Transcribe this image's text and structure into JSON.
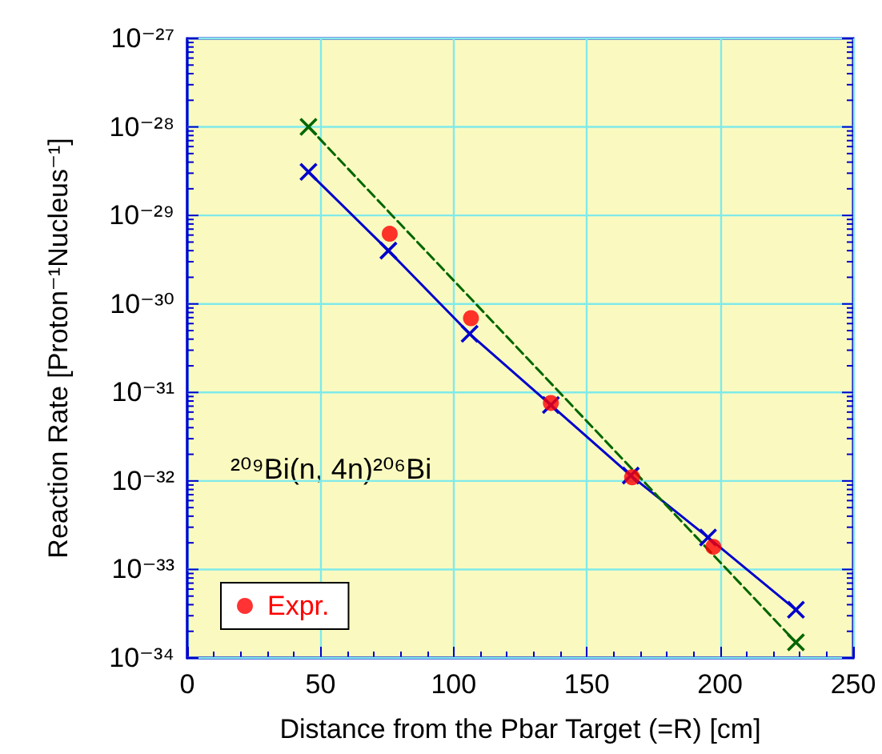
{
  "chart_data": {
    "type": "line",
    "xlabel": "Distance from the Pbar Target (=R) [cm]",
    "ylabel": "Reaction Rate [Proton⁻¹Nucleus⁻¹]",
    "annotations": [
      "²⁰⁹Bi(n, 4n)²⁰⁶Bi"
    ],
    "log": "y",
    "grid": true,
    "legend": "bottom left",
    "xlim": [
      0,
      250
    ],
    "xticks": [
      0,
      50,
      100,
      150,
      200,
      250
    ],
    "ylim": [
      1e-34,
      1e-27
    ],
    "yticks": [
      {
        "value": 1e-34,
        "label": "10⁻³⁴"
      },
      {
        "value": 1e-33,
        "label": "10⁻³³"
      },
      {
        "value": 1e-32,
        "label": "10⁻³²"
      },
      {
        "value": 1e-31,
        "label": "10⁻³¹"
      },
      {
        "value": 1e-30,
        "label": "10⁻³⁰"
      },
      {
        "value": 1e-29,
        "label": "10⁻²⁹"
      },
      {
        "value": 1e-28,
        "label": "10⁻²⁸"
      },
      {
        "value": 1e-27,
        "label": "10⁻²⁷"
      }
    ],
    "series": [
      {
        "name": "Expr.",
        "type": "scatter",
        "marker": "circle",
        "color": "#ff0000",
        "x": [
          76,
          106.5,
          136.5,
          167,
          197.5
        ],
        "values": [
          6.2e-30,
          6.9e-31,
          7.6e-32,
          1.1e-32,
          1.8e-33
        ]
      },
      {
        "type": "line",
        "marker": "cross",
        "line_style": "solid",
        "color": "#0000cc",
        "x": [
          45.5,
          75.5,
          106,
          136.5,
          166.5,
          195.5,
          228.5
        ],
        "values": [
          3.1e-29,
          4e-30,
          4.6e-31,
          7.2e-32,
          1.15e-32,
          2.3e-33,
          3.5e-34
        ]
      },
      {
        "type": "line",
        "marker": "cross",
        "line_style": "dashed",
        "color": "#006600",
        "x": [
          45.5,
          228.5
        ],
        "values": [
          1e-28,
          1.5e-34
        ]
      }
    ]
  }
}
